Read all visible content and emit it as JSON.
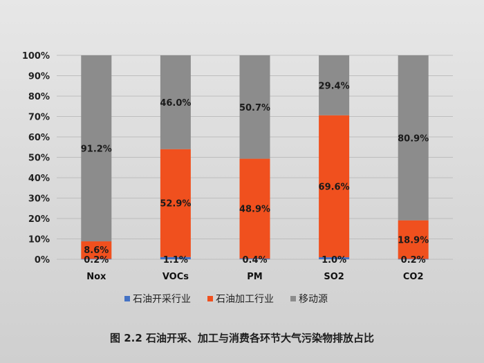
{
  "chart_data": {
    "type": "bar",
    "stacked": true,
    "percent": true,
    "categories": [
      "Nox",
      "VOCs",
      "PM",
      "SO2",
      "CO2"
    ],
    "series": [
      {
        "name": "石油开采行业",
        "color": "#4472c4",
        "values": [
          0.2,
          1.1,
          0.4,
          1.0,
          0.2
        ],
        "labels": [
          "0.2%",
          "1.1%",
          "0.4%",
          "1.0%",
          "0.2%"
        ]
      },
      {
        "name": "石油加工行业",
        "color": "#f0501e",
        "values": [
          8.6,
          52.9,
          48.9,
          69.6,
          18.9
        ],
        "labels": [
          "8.6%",
          "52.9%",
          "48.9%",
          "69.6%",
          "18.9%"
        ]
      },
      {
        "name": "移动源",
        "color": "#8c8c8c",
        "values": [
          91.2,
          46.0,
          50.7,
          29.4,
          80.9
        ],
        "labels": [
          "91.2%",
          "46.0%",
          "50.7%",
          "29.4%",
          "80.9%"
        ]
      }
    ],
    "yticks": [
      "0%",
      "10%",
      "20%",
      "30%",
      "40%",
      "50%",
      "60%",
      "70%",
      "80%",
      "90%",
      "100%"
    ],
    "ylim": [
      0,
      100
    ],
    "grid": true,
    "legend_position": "bottom"
  },
  "caption": "图 2.2  石油开采、加工与消费各环节大气污染物排放占比"
}
